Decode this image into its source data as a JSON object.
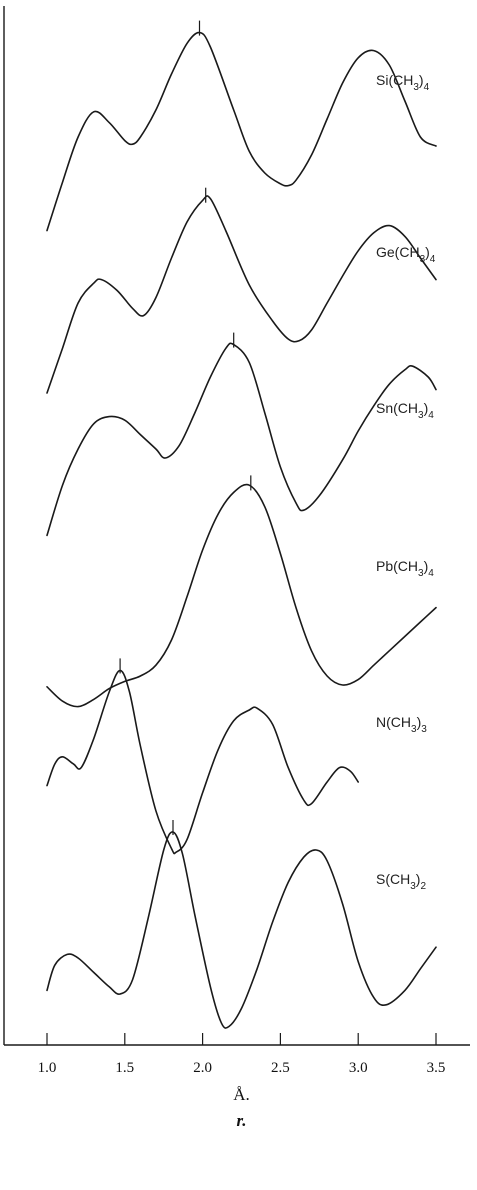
{
  "chart_data": {
    "type": "line",
    "xlim": [
      1.0,
      3.5
    ],
    "x_ticks": [
      "1.0",
      "1.5",
      "2.0",
      "2.5",
      "3.0",
      "3.5"
    ],
    "xlabel_unit": "Å.",
    "xlabel": "r.",
    "grid": false,
    "series": [
      {
        "name_parts": [
          "Si(CH",
          "3",
          ")",
          "4"
        ],
        "peak_r": 1.98,
        "points": [
          [
            1.0,
            0.08
          ],
          [
            1.1,
            0.35
          ],
          [
            1.2,
            0.6
          ],
          [
            1.3,
            0.74
          ],
          [
            1.4,
            0.68
          ],
          [
            1.5,
            0.58
          ],
          [
            1.55,
            0.56
          ],
          [
            1.6,
            0.6
          ],
          [
            1.7,
            0.75
          ],
          [
            1.8,
            0.95
          ],
          [
            1.9,
            1.12
          ],
          [
            1.98,
            1.18
          ],
          [
            2.05,
            1.1
          ],
          [
            2.2,
            0.75
          ],
          [
            2.3,
            0.52
          ],
          [
            2.4,
            0.4
          ],
          [
            2.5,
            0.34
          ],
          [
            2.55,
            0.33
          ],
          [
            2.6,
            0.36
          ],
          [
            2.7,
            0.5
          ],
          [
            2.8,
            0.7
          ],
          [
            2.9,
            0.9
          ],
          [
            3.0,
            1.04
          ],
          [
            3.1,
            1.08
          ],
          [
            3.2,
            1.0
          ],
          [
            3.3,
            0.8
          ],
          [
            3.4,
            0.6
          ],
          [
            3.5,
            0.55
          ]
        ]
      },
      {
        "name_parts": [
          "Ge(CH",
          "3",
          ")",
          "4"
        ],
        "peak_r": 2.02,
        "points": [
          [
            1.0,
            0.05
          ],
          [
            1.1,
            0.3
          ],
          [
            1.2,
            0.55
          ],
          [
            1.3,
            0.66
          ],
          [
            1.35,
            0.68
          ],
          [
            1.45,
            0.62
          ],
          [
            1.55,
            0.52
          ],
          [
            1.62,
            0.48
          ],
          [
            1.7,
            0.58
          ],
          [
            1.8,
            0.8
          ],
          [
            1.9,
            1.0
          ],
          [
            2.0,
            1.12
          ],
          [
            2.05,
            1.13
          ],
          [
            2.15,
            0.95
          ],
          [
            2.3,
            0.65
          ],
          [
            2.45,
            0.45
          ],
          [
            2.55,
            0.35
          ],
          [
            2.62,
            0.34
          ],
          [
            2.7,
            0.4
          ],
          [
            2.8,
            0.55
          ],
          [
            2.9,
            0.7
          ],
          [
            3.0,
            0.84
          ],
          [
            3.1,
            0.94
          ],
          [
            3.2,
            0.98
          ],
          [
            3.3,
            0.92
          ],
          [
            3.4,
            0.8
          ],
          [
            3.5,
            0.68
          ]
        ]
      },
      {
        "name_parts": [
          "Sn(CH",
          "3",
          ")",
          "4"
        ],
        "peak_r": 2.2,
        "points": [
          [
            1.0,
            0.12
          ],
          [
            1.1,
            0.4
          ],
          [
            1.2,
            0.6
          ],
          [
            1.3,
            0.74
          ],
          [
            1.4,
            0.78
          ],
          [
            1.5,
            0.76
          ],
          [
            1.6,
            0.68
          ],
          [
            1.7,
            0.6
          ],
          [
            1.76,
            0.55
          ],
          [
            1.85,
            0.62
          ],
          [
            1.95,
            0.8
          ],
          [
            2.05,
            1.0
          ],
          [
            2.15,
            1.16
          ],
          [
            2.2,
            1.18
          ],
          [
            2.3,
            1.08
          ],
          [
            2.4,
            0.8
          ],
          [
            2.5,
            0.5
          ],
          [
            2.6,
            0.3
          ],
          [
            2.65,
            0.26
          ],
          [
            2.75,
            0.34
          ],
          [
            2.9,
            0.54
          ],
          [
            3.0,
            0.7
          ],
          [
            3.1,
            0.84
          ],
          [
            3.2,
            0.96
          ],
          [
            3.3,
            1.04
          ],
          [
            3.35,
            1.06
          ],
          [
            3.45,
            1.0
          ],
          [
            3.5,
            0.93
          ]
        ]
      },
      {
        "name_parts": [
          "Pb(CH",
          "3",
          ")",
          "4"
        ],
        "peak_r": 2.31,
        "points": [
          [
            1.0,
            0.14
          ],
          [
            1.1,
            0.06
          ],
          [
            1.2,
            0.03
          ],
          [
            1.3,
            0.07
          ],
          [
            1.4,
            0.13
          ],
          [
            1.5,
            0.17
          ],
          [
            1.6,
            0.2
          ],
          [
            1.7,
            0.26
          ],
          [
            1.8,
            0.4
          ],
          [
            1.9,
            0.64
          ],
          [
            2.0,
            0.9
          ],
          [
            2.1,
            1.1
          ],
          [
            2.2,
            1.22
          ],
          [
            2.3,
            1.26
          ],
          [
            2.4,
            1.14
          ],
          [
            2.5,
            0.88
          ],
          [
            2.6,
            0.58
          ],
          [
            2.7,
            0.34
          ],
          [
            2.8,
            0.2
          ],
          [
            2.9,
            0.15
          ],
          [
            3.0,
            0.18
          ],
          [
            3.1,
            0.26
          ],
          [
            3.2,
            0.34
          ],
          [
            3.3,
            0.42
          ],
          [
            3.4,
            0.5
          ],
          [
            3.5,
            0.58
          ]
        ]
      },
      {
        "name_parts": [
          "N(CH",
          "3",
          ")",
          "3"
        ],
        "peak_r": 1.47,
        "points": [
          [
            1.0,
            0.48
          ],
          [
            1.05,
            0.6
          ],
          [
            1.1,
            0.64
          ],
          [
            1.17,
            0.6
          ],
          [
            1.22,
            0.58
          ],
          [
            1.3,
            0.74
          ],
          [
            1.4,
            1.0
          ],
          [
            1.47,
            1.12
          ],
          [
            1.53,
            1.0
          ],
          [
            1.6,
            0.7
          ],
          [
            1.7,
            0.34
          ],
          [
            1.8,
            0.13
          ],
          [
            1.83,
            0.11
          ],
          [
            1.9,
            0.18
          ],
          [
            2.0,
            0.44
          ],
          [
            2.1,
            0.68
          ],
          [
            2.2,
            0.84
          ],
          [
            2.3,
            0.9
          ],
          [
            2.35,
            0.91
          ],
          [
            2.45,
            0.82
          ],
          [
            2.55,
            0.58
          ],
          [
            2.65,
            0.4
          ],
          [
            2.7,
            0.38
          ],
          [
            2.8,
            0.5
          ],
          [
            2.88,
            0.58
          ],
          [
            2.95,
            0.56
          ],
          [
            3.0,
            0.5
          ]
        ]
      },
      {
        "name_parts": [
          "S(CH",
          "3",
          ")",
          "2"
        ],
        "peak_r": 1.81,
        "points": [
          [
            1.0,
            0.22
          ],
          [
            1.05,
            0.36
          ],
          [
            1.13,
            0.42
          ],
          [
            1.2,
            0.4
          ],
          [
            1.3,
            0.32
          ],
          [
            1.4,
            0.24
          ],
          [
            1.47,
            0.2
          ],
          [
            1.55,
            0.28
          ],
          [
            1.65,
            0.62
          ],
          [
            1.75,
            1.0
          ],
          [
            1.81,
            1.1
          ],
          [
            1.87,
            0.98
          ],
          [
            1.95,
            0.64
          ],
          [
            2.05,
            0.24
          ],
          [
            2.12,
            0.04
          ],
          [
            2.17,
            0.02
          ],
          [
            2.25,
            0.12
          ],
          [
            2.35,
            0.34
          ],
          [
            2.45,
            0.6
          ],
          [
            2.55,
            0.82
          ],
          [
            2.65,
            0.96
          ],
          [
            2.73,
            1.0
          ],
          [
            2.8,
            0.94
          ],
          [
            2.9,
            0.7
          ],
          [
            3.0,
            0.38
          ],
          [
            3.1,
            0.18
          ],
          [
            3.18,
            0.14
          ],
          [
            3.3,
            0.22
          ],
          [
            3.4,
            0.34
          ],
          [
            3.5,
            0.46
          ]
        ]
      }
    ]
  }
}
